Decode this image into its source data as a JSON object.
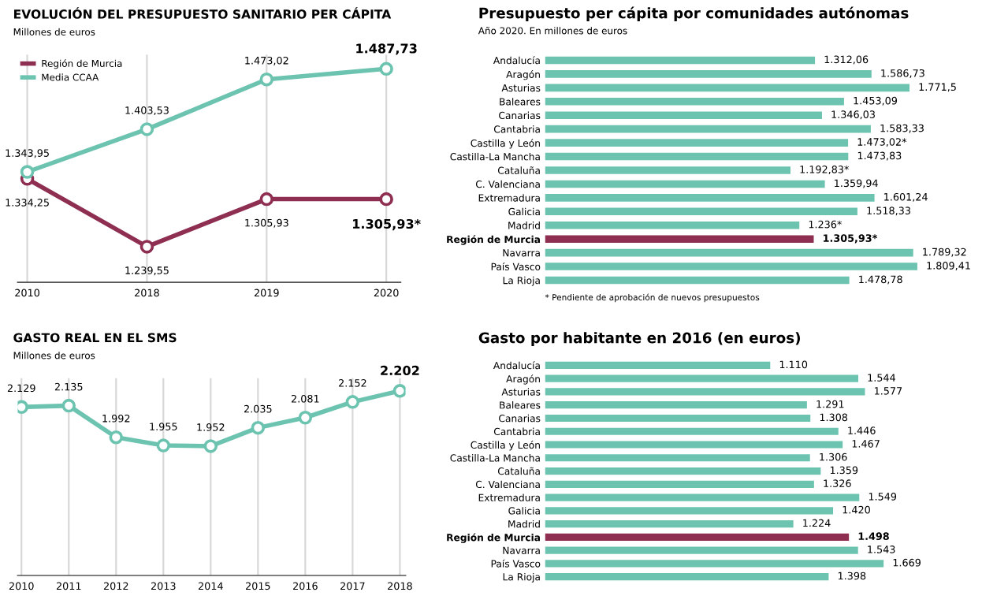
{
  "chart_data": [
    {
      "type": "line",
      "title": "EVOLUCIÓN DEL PRESUPUESTO SANITARIO PER CÁPITA",
      "subtitle": "Millones de euros",
      "categories": [
        "2010",
        "2018",
        "2019",
        "2020"
      ],
      "series": [
        {
          "name": "Región de Murcia",
          "color": "#8e2f52",
          "values": [
            1334.25,
            1239.55,
            1305.93,
            1305.93
          ],
          "value_labels": [
            "1.334,25",
            "1.239,55",
            "1.305,93",
            "1.305,93*"
          ]
        },
        {
          "name": "Media CCAA",
          "color": "#6cc4b0",
          "values": [
            1343.95,
            1403.53,
            1473.02,
            1487.73
          ],
          "value_labels": [
            "1.343,95",
            "1.403,53",
            "1.473,02",
            "1.487,73"
          ]
        }
      ],
      "marker": "circle",
      "grid": "x",
      "legend": "top left",
      "tick_labels": "x"
    },
    {
      "type": "bar",
      "orientation": "horizontal",
      "title": "Presupuesto per cápita por comunidades autónomas",
      "subtitle": "Año 2020. En millones de euros",
      "categories": [
        "Andalucía",
        "Aragón",
        "Asturias",
        "Baleares",
        "Canarias",
        "Cantabria",
        "Castilla y León",
        "Castilla-La Mancha",
        "Cataluña",
        "C. Valenciana",
        "Extremadura",
        "Galicia",
        "Madrid",
        "Región de Murcia",
        "Navarra",
        "País Vasco",
        "La Rioja"
      ],
      "values": [
        1312.06,
        1586.73,
        1771.5,
        1453.09,
        1346.03,
        1583.33,
        1473.02,
        1473.83,
        1192.83,
        1359.94,
        1601.24,
        1518.33,
        1236,
        1305.93,
        1789.32,
        1809.41,
        1478.78
      ],
      "value_labels": [
        "1.312,06",
        "1.586,73",
        "1.771,5",
        "1.453,09",
        "1.346,03",
        "1.583,33",
        "1.473,02*",
        "1.473,83",
        "1.192,83*",
        "1.359,94",
        "1.601,24",
        "1.518,33",
        "1.236*",
        "1.305,93*",
        "1.789,32",
        "1.809,41",
        "1.478,78"
      ],
      "colors": [
        "#6cc4b0",
        "#6cc4b0",
        "#6cc4b0",
        "#6cc4b0",
        "#6cc4b0",
        "#6cc4b0",
        "#6cc4b0",
        "#6cc4b0",
        "#6cc4b0",
        "#6cc4b0",
        "#6cc4b0",
        "#6cc4b0",
        "#6cc4b0",
        "#8e2f52",
        "#6cc4b0",
        "#6cc4b0",
        "#6cc4b0"
      ],
      "annotations": [
        "* Pendiente de aprobación de nuevos presupuestos"
      ],
      "tick_labels": "y"
    },
    {
      "type": "line",
      "title": "GASTO REAL EN EL SMS",
      "subtitle": "Millones de euros",
      "categories": [
        "2010",
        "2011",
        "2012",
        "2013",
        "2014",
        "2015",
        "2016",
        "2017",
        "2018"
      ],
      "series": [
        {
          "color": "#6cc4b0",
          "values": [
            2129,
            2135,
            1992,
            1955,
            1952,
            2035,
            2081,
            2152,
            2202
          ],
          "value_labels": [
            "2.129",
            "2.135",
            "1.992",
            "1.955",
            "1.952",
            "2.035",
            "2.081",
            "2.152",
            "2.202"
          ]
        }
      ],
      "marker": "circle",
      "grid": "x",
      "tick_labels": "x"
    },
    {
      "type": "bar",
      "orientation": "horizontal",
      "title": "Gasto por habitante en 2016 (en euros)",
      "categories": [
        "Andalucía",
        "Aragón",
        "Asturias",
        "Baleares",
        "Canarias",
        "Cantabria",
        "Castilla y León",
        "Castilla-La Mancha",
        "Cataluña",
        "C. Valenciana",
        "Extremadura",
        "Galicia",
        "Madrid",
        "Región de Murcia",
        "Navarra",
        "País Vasco",
        "La Rioja"
      ],
      "values": [
        1110,
        1544,
        1577,
        1291,
        1308,
        1446,
        1467,
        1306,
        1359,
        1326,
        1549,
        1420,
        1224,
        1498,
        1543,
        1669,
        1398
      ],
      "value_labels": [
        "1.110",
        "1.544",
        "1.577",
        "1.291",
        "1.308",
        "1.446",
        "1.467",
        "1.306",
        "1.359",
        "1.326",
        "1.549",
        "1.420",
        "1.224",
        "1.498",
        "1.543",
        "1.669",
        "1.398"
      ],
      "colors": [
        "#6cc4b0",
        "#6cc4b0",
        "#6cc4b0",
        "#6cc4b0",
        "#6cc4b0",
        "#6cc4b0",
        "#6cc4b0",
        "#6cc4b0",
        "#6cc4b0",
        "#6cc4b0",
        "#6cc4b0",
        "#6cc4b0",
        "#6cc4b0",
        "#8e2f52",
        "#6cc4b0",
        "#6cc4b0",
        "#6cc4b0"
      ],
      "tick_labels": "y"
    }
  ]
}
